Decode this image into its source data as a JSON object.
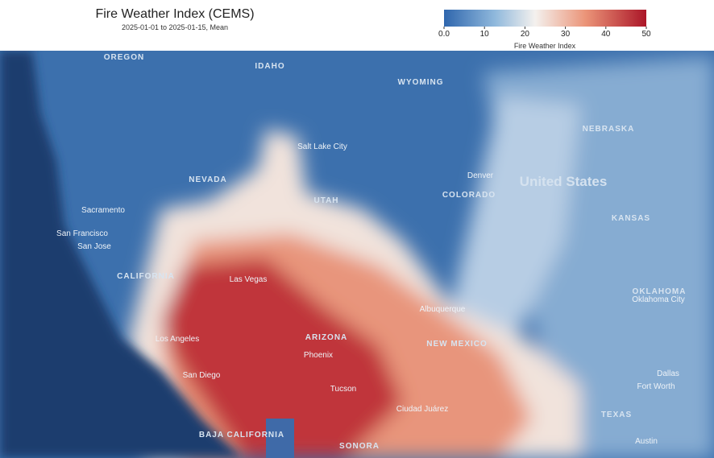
{
  "header": {
    "title": "Fire Weather Index (CEMS)",
    "subtitle": "2025-01-01 to 2025-01-15, Mean"
  },
  "colorbar": {
    "range": [
      0,
      50
    ],
    "ticks": [
      {
        "value": 0,
        "label": "0.0"
      },
      10,
      20,
      30,
      40,
      50
    ],
    "label": "Fire Weather Index"
  },
  "map": {
    "country": "United States",
    "states": [
      "OREGON",
      "IDAHO",
      "WYOMING",
      "NEBRASKA",
      "NEVADA",
      "UTAH",
      "COLORADO",
      "KANSAS",
      "CALIFORNIA",
      "ARIZONA",
      "NEW MEXICO",
      "OKLAHOMA",
      "TEXAS",
      "SONORA",
      "BAJA CALIFORNIA"
    ],
    "cities": [
      "Sacramento",
      "San Francisco",
      "San Jose",
      "Las Vegas",
      "Los Angeles",
      "San Diego",
      "Phoenix",
      "Tucson",
      "Albuquerque",
      "Denver",
      "Salt Lake City",
      "Oklahoma City",
      "Dallas",
      "Fort Worth",
      "Austin",
      "Ciudad Juárez"
    ]
  }
}
